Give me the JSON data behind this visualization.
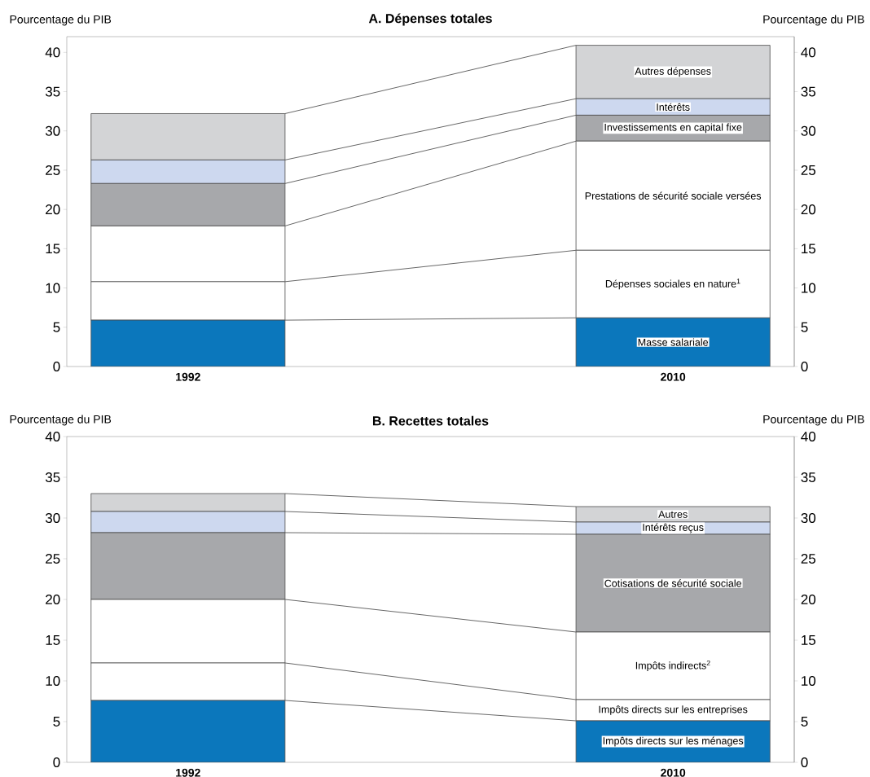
{
  "chart_data": [
    {
      "type": "bar",
      "title": "A. Dépenses totales",
      "ylabel": "Pourcentage du PIB",
      "y2label": "Pourcentage du PIB",
      "categories": [
        "1992",
        "2010"
      ],
      "stacked": true,
      "ylim": [
        0,
        42
      ],
      "yticks": [
        0,
        5,
        10,
        15,
        20,
        25,
        30,
        35,
        40
      ],
      "y2lim": [
        0,
        42
      ],
      "y2ticks": [
        0,
        5,
        10,
        15,
        20,
        25,
        30,
        35,
        40
      ],
      "series": [
        {
          "name": "Masse salariale",
          "color": "#0b77bc",
          "values": [
            5.9,
            6.2
          ]
        },
        {
          "name": "Dépenses sociales en nature$^{1}$",
          "color": "#ffffff",
          "values": [
            4.9,
            8.6
          ]
        },
        {
          "name": "Prestations de sécurité sociale versées",
          "color": "#ffffff",
          "values": [
            7.1,
            13.9
          ]
        },
        {
          "name": "Investissements en capital fixe",
          "color": "#a7a8ab",
          "values": [
            5.4,
            3.3
          ]
        },
        {
          "name": "Intérêts",
          "color": "#cdd8ef",
          "values": [
            3.0,
            2.1
          ]
        },
        {
          "name": "Autres dépenses",
          "color": "#d3d4d6",
          "values": [
            5.9,
            6.8
          ]
        }
      ]
    },
    {
      "type": "bar",
      "title": "B. Recettes totales",
      "ylabel": "Pourcentage du PIB",
      "y2label": "Pourcentage du PIB",
      "categories": [
        "1992",
        "2010"
      ],
      "stacked": true,
      "ylim": [
        0,
        40
      ],
      "yticks": [
        0,
        5,
        10,
        15,
        20,
        25,
        30,
        35,
        40
      ],
      "y2lim": [
        0,
        40
      ],
      "y2ticks": [
        0,
        5,
        10,
        15,
        20,
        25,
        30,
        35,
        40
      ],
      "series": [
        {
          "name": "Impôts directs sur les ménages",
          "color": "#0b77bc",
          "values": [
            7.6,
            5.1
          ]
        },
        {
          "name": "Impôts directs sur les entreprises",
          "color": "#ffffff",
          "values": [
            4.6,
            2.6
          ]
        },
        {
          "name": "Impôts indirects$^{2}$",
          "color": "#ffffff",
          "values": [
            7.8,
            8.3
          ]
        },
        {
          "name": "Cotisations de sécurité sociale",
          "color": "#a7a8ab",
          "values": [
            8.2,
            12.0
          ]
        },
        {
          "name": "Intérêts reçus",
          "color": "#cdd8ef",
          "values": [
            2.6,
            1.5
          ]
        },
        {
          "name": "Autres",
          "color": "#d3d4d6",
          "values": [
            2.2,
            1.9
          ]
        }
      ]
    }
  ]
}
